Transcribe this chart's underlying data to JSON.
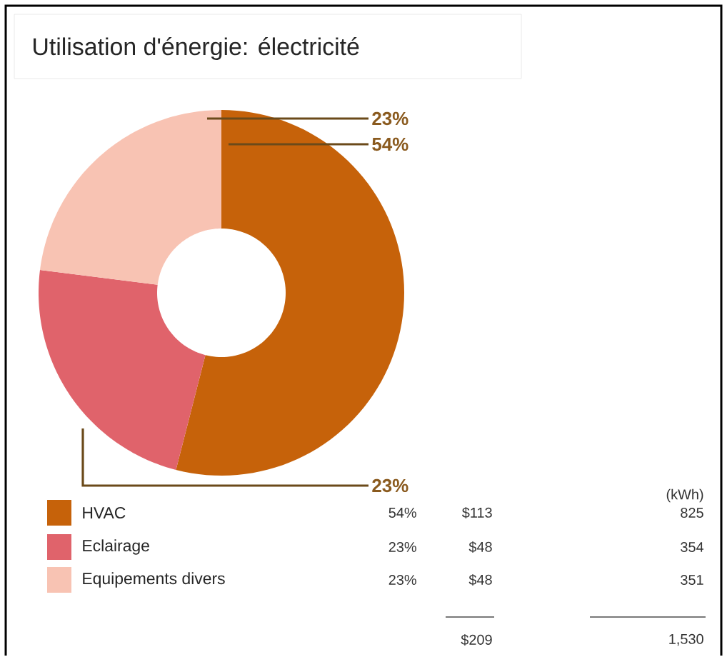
{
  "chart_data": {
    "type": "donut",
    "title": "Utilisation d'énergie: électricité",
    "categories": [
      "HVAC",
      "Eclairage",
      "Equipements divers"
    ],
    "values": [
      54,
      23,
      23
    ],
    "colors": [
      "#c6620a",
      "#e0636b",
      "#f8c3b3"
    ],
    "value_labels": [
      "54%",
      "23%",
      "23%"
    ],
    "legend": "bottom left",
    "annotations": [
      "$113",
      "825",
      "$48",
      "354",
      "$48",
      "351",
      "(kWh)",
      "$209",
      "1,530"
    ]
  }
}
